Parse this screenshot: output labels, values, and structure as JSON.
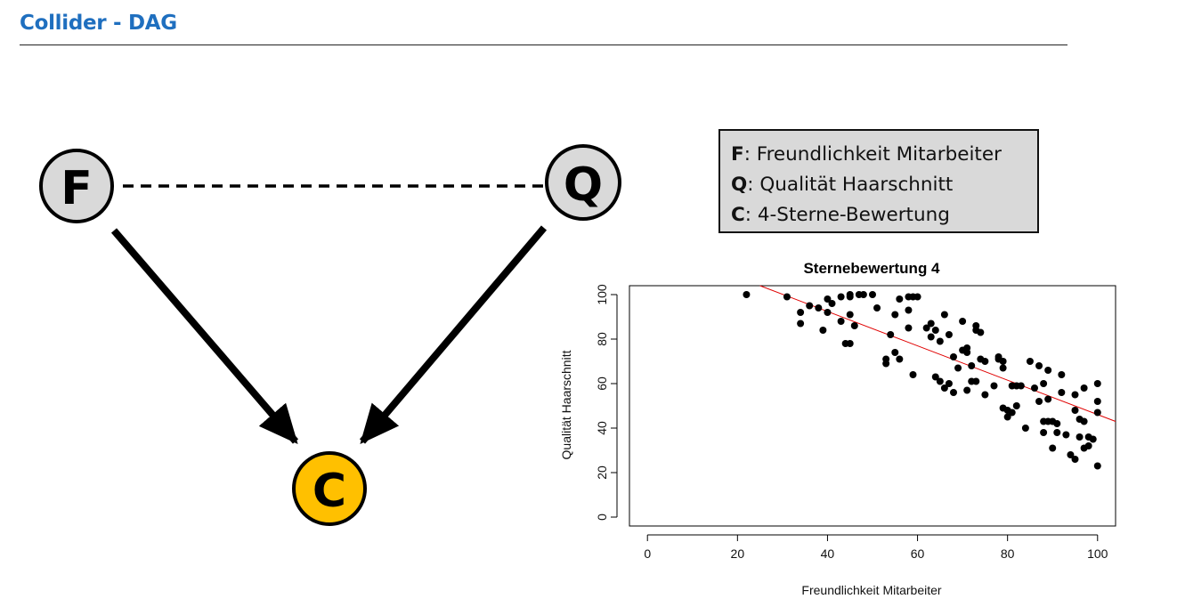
{
  "title": "Collider - DAG",
  "dag": {
    "nodes": [
      {
        "id": "F",
        "label": "F",
        "fill": "#d9d9d9"
      },
      {
        "id": "Q",
        "label": "Q",
        "fill": "#d9d9d9"
      },
      {
        "id": "C",
        "label": "C",
        "fill": "#ffc000"
      }
    ],
    "edges": [
      {
        "from": "F",
        "to": "Q",
        "style": "dashed",
        "directed": false
      },
      {
        "from": "F",
        "to": "C",
        "style": "solid",
        "directed": true
      },
      {
        "from": "Q",
        "to": "C",
        "style": "solid",
        "directed": true
      }
    ]
  },
  "legend": [
    {
      "key": "F",
      "sep": ": ",
      "text": "Freundlichkeit Mitarbeiter"
    },
    {
      "key": "Q",
      "sep": ": ",
      "text": "Qualität Haarschnitt"
    },
    {
      "key": "C",
      "sep": ": ",
      "text": "4-Sterne-Bewertung"
    }
  ],
  "chart_data": {
    "type": "scatter",
    "title": "Sternebewertung 4",
    "xlabel": "Freundlichkeit Mitarbeiter",
    "ylabel": "Qualität Haarschnitt",
    "xlim": [
      -4,
      104
    ],
    "ylim": [
      -4,
      104
    ],
    "xticks": [
      "0",
      "20",
      "40",
      "60",
      "80",
      "100"
    ],
    "yticks": [
      "0",
      "20",
      "40",
      "60",
      "80",
      "100"
    ],
    "point_color": "#000000",
    "trend_color": "#e00000",
    "trend_line": {
      "x": [
        25,
        104
      ],
      "y": [
        104,
        43
      ]
    },
    "points": [
      [
        22,
        100
      ],
      [
        31,
        99
      ],
      [
        34,
        92
      ],
      [
        34,
        87
      ],
      [
        36,
        95
      ],
      [
        38,
        94
      ],
      [
        39,
        84
      ],
      [
        40,
        98
      ],
      [
        41,
        96
      ],
      [
        40,
        92
      ],
      [
        43,
        99
      ],
      [
        44,
        78
      ],
      [
        45,
        78
      ],
      [
        43,
        88
      ],
      [
        45,
        91
      ],
      [
        45,
        99
      ],
      [
        45,
        100
      ],
      [
        46,
        86
      ],
      [
        47,
        100
      ],
      [
        48,
        100
      ],
      [
        50,
        100
      ],
      [
        51,
        94
      ],
      [
        53,
        69
      ],
      [
        53,
        71
      ],
      [
        54,
        82
      ],
      [
        55,
        74
      ],
      [
        55,
        91
      ],
      [
        56,
        71
      ],
      [
        56,
        98
      ],
      [
        58,
        85
      ],
      [
        58,
        93
      ],
      [
        58,
        99
      ],
      [
        59,
        64
      ],
      [
        59,
        99
      ],
      [
        60,
        99
      ],
      [
        62,
        85
      ],
      [
        63,
        81
      ],
      [
        63,
        87
      ],
      [
        64,
        84
      ],
      [
        64,
        63
      ],
      [
        65,
        79
      ],
      [
        65,
        61
      ],
      [
        66,
        91
      ],
      [
        66,
        58
      ],
      [
        67,
        82
      ],
      [
        67,
        60
      ],
      [
        68,
        56
      ],
      [
        68,
        72
      ],
      [
        69,
        67
      ],
      [
        70,
        75
      ],
      [
        70,
        88
      ],
      [
        71,
        57
      ],
      [
        71,
        74
      ],
      [
        71,
        76
      ],
      [
        72,
        61
      ],
      [
        72,
        68
      ],
      [
        73,
        61
      ],
      [
        73,
        84
      ],
      [
        73,
        86
      ],
      [
        74,
        83
      ],
      [
        74,
        71
      ],
      [
        75,
        70
      ],
      [
        75,
        55
      ],
      [
        77,
        59
      ],
      [
        78,
        71
      ],
      [
        78,
        72
      ],
      [
        79,
        70
      ],
      [
        79,
        67
      ],
      [
        79,
        49
      ],
      [
        80,
        45
      ],
      [
        80,
        48
      ],
      [
        81,
        47
      ],
      [
        81,
        59
      ],
      [
        82,
        50
      ],
      [
        82,
        59
      ],
      [
        83,
        59
      ],
      [
        84,
        40
      ],
      [
        85,
        70
      ],
      [
        86,
        58
      ],
      [
        87,
        52
      ],
      [
        87,
        68
      ],
      [
        88,
        38
      ],
      [
        88,
        43
      ],
      [
        88,
        60
      ],
      [
        89,
        53
      ],
      [
        89,
        66
      ],
      [
        89,
        43
      ],
      [
        90,
        31
      ],
      [
        90,
        43
      ],
      [
        91,
        42
      ],
      [
        91,
        38
      ],
      [
        92,
        64
      ],
      [
        92,
        56
      ],
      [
        93,
        37
      ],
      [
        94,
        28
      ],
      [
        95,
        26
      ],
      [
        95,
        48
      ],
      [
        95,
        55
      ],
      [
        96,
        36
      ],
      [
        96,
        44
      ],
      [
        97,
        31
      ],
      [
        97,
        43
      ],
      [
        97,
        58
      ],
      [
        98,
        36
      ],
      [
        98,
        32
      ],
      [
        99,
        35
      ],
      [
        100,
        23
      ],
      [
        100,
        47
      ],
      [
        100,
        52
      ],
      [
        100,
        60
      ]
    ]
  }
}
